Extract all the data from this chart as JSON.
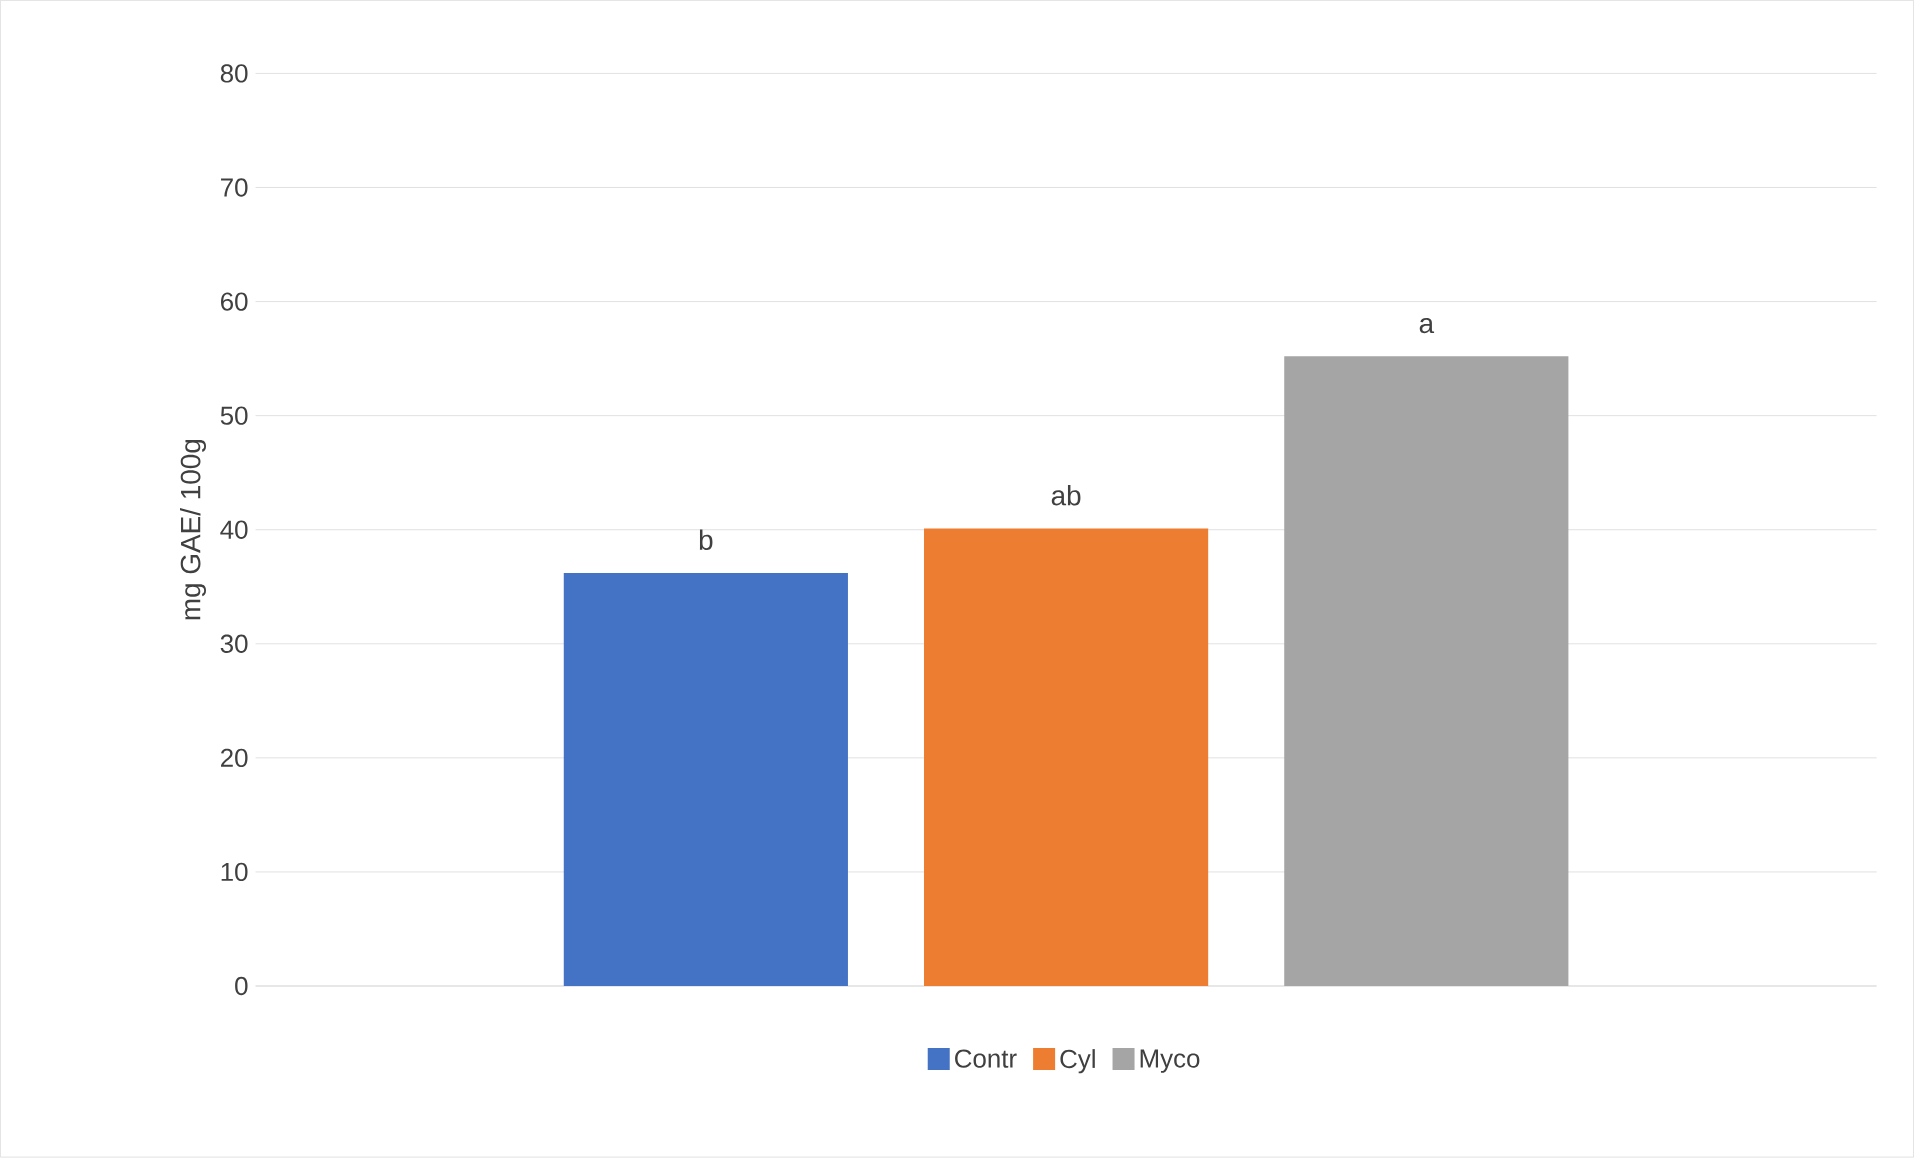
{
  "chart_data": {
    "type": "bar",
    "ylabel": "mg GAE/ 100g",
    "categories": [
      null
    ],
    "series": [
      {
        "name": "Contr",
        "color": "#4472c4",
        "values": [
          36.2
        ]
      },
      {
        "name": "Cyl",
        "color": "#ed7d31",
        "values": [
          40.1
        ]
      },
      {
        "name": "Myco",
        "color": "#a5a5a5",
        "values": [
          55.2
        ]
      }
    ],
    "annotations": [
      "b",
      "ab",
      "a"
    ],
    "ylim": [
      0,
      80
    ],
    "yticks": [
      0,
      10,
      20,
      30,
      40,
      50,
      60,
      70,
      80
    ],
    "grid": "y",
    "legend": "bottom"
  }
}
